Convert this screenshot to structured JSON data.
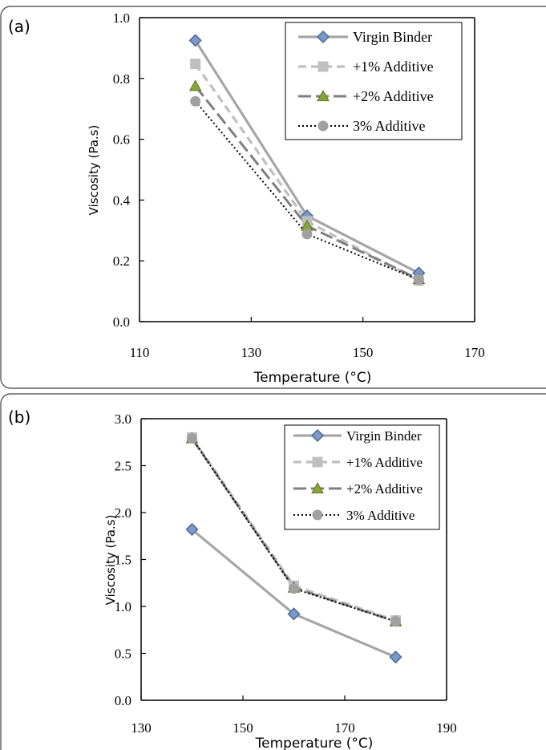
{
  "colors": {
    "frame": "#404040",
    "virgin": "#a6a6a6",
    "virgin_marker_fill": "#7f98c6",
    "virgin_marker_stroke": "#4a6a9c",
    "p1": "#bfbfbf",
    "p2": "#7f7f7f",
    "p2_marker": "#8aa33a",
    "p3": "#000000",
    "p3_marker": "#a0a0a0"
  },
  "chart_data": [
    {
      "panel_label": "(a)",
      "type": "line",
      "xlabel": "Temperature (°C)",
      "ylabel": "Viscosity (Pa.s)",
      "xlim": [
        110,
        170
      ],
      "ylim": [
        0,
        1.0
      ],
      "xticks": [
        "110",
        "130",
        "150",
        "170"
      ],
      "yticks": [
        "0.0",
        "0.2",
        "0.4",
        "0.6",
        "0.8",
        "1.0"
      ],
      "legend_position": "top-right",
      "x": [
        120,
        140,
        160
      ],
      "series": [
        {
          "name": "Virgin Binder",
          "values": [
            0.925,
            0.348,
            0.16
          ]
        },
        {
          "name": "+1% Additive",
          "values": [
            0.848,
            0.33,
            0.135
          ]
        },
        {
          "name": "+2% Additive",
          "values": [
            0.775,
            0.315,
            0.14
          ]
        },
        {
          "name": "3% Additive",
          "values": [
            0.725,
            0.288,
            0.138
          ]
        }
      ]
    },
    {
      "panel_label": "(b)",
      "type": "line",
      "xlabel": "Temperature (°C)",
      "ylabel": "Viscosity (Pa.s)",
      "xlim": [
        130,
        190
      ],
      "ylim": [
        0,
        3.0
      ],
      "xticks": [
        "130",
        "150",
        "170",
        "190"
      ],
      "yticks": [
        "0.0",
        "0.5",
        "1.0",
        "1.5",
        "2.0",
        "2.5",
        "3.0"
      ],
      "legend_position": "top-right",
      "x": [
        140,
        160,
        180
      ],
      "series": [
        {
          "name": "Virgin Binder",
          "values": [
            1.82,
            0.92,
            0.46
          ]
        },
        {
          "name": "+1% Additive",
          "values": [
            2.8,
            1.22,
            0.85
          ]
        },
        {
          "name": "+2% Additive",
          "values": [
            2.79,
            1.2,
            0.84
          ]
        },
        {
          "name": "3% Additive",
          "values": [
            2.79,
            1.19,
            0.84
          ]
        }
      ]
    }
  ]
}
